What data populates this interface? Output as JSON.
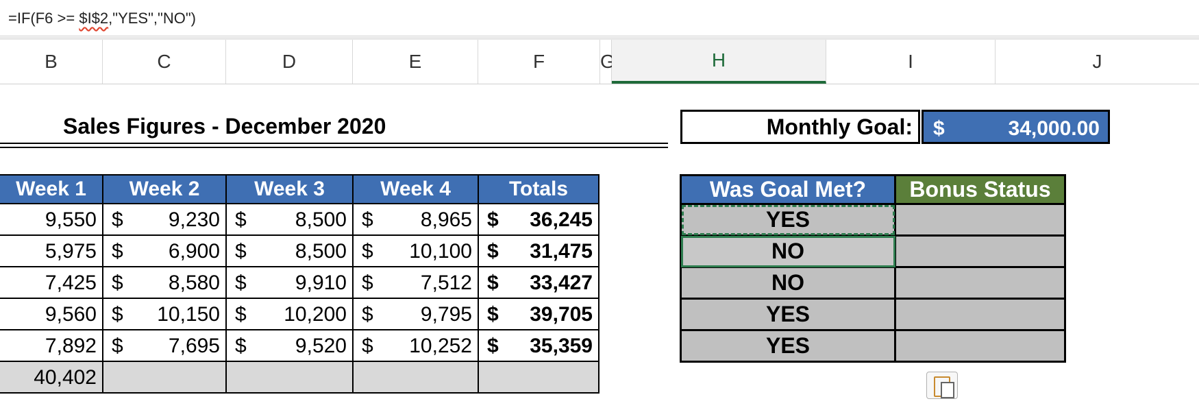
{
  "formula": {
    "prefix": "=IF(F6 >= ",
    "ref": "$I$2",
    "suffix": ",\"YES\",\"NO\")"
  },
  "columns": [
    "B",
    "C",
    "D",
    "E",
    "F",
    "G",
    "H",
    "I",
    "J"
  ],
  "active_column": "H",
  "title": "Sales Figures - December 2020",
  "goal": {
    "label": "Monthly Goal:",
    "currency": "$",
    "value": "34,000.00"
  },
  "sales_table": {
    "headers": [
      "Week 1",
      "Week 2",
      "Week 3",
      "Week 4",
      "Totals"
    ],
    "rows": [
      {
        "w1": "9,550",
        "w2": "9,230",
        "w3": "8,500",
        "w4": "8,965",
        "total": "36,245"
      },
      {
        "w1": "5,975",
        "w2": "6,900",
        "w3": "8,500",
        "w4": "10,100",
        "total": "31,475"
      },
      {
        "w1": "7,425",
        "w2": "8,580",
        "w3": "9,910",
        "w4": "7,512",
        "total": "33,427"
      },
      {
        "w1": "9,560",
        "w2": "10,150",
        "w3": "10,200",
        "w4": "9,795",
        "total": "39,705"
      },
      {
        "w1": "7,892",
        "w2": "7,695",
        "w3": "9,520",
        "w4": "10,252",
        "total": "35,359"
      }
    ],
    "currency": "$",
    "footer_w1": "40,402"
  },
  "goal_table": {
    "headers": [
      "Was Goal Met?",
      "Bonus Status"
    ],
    "header_colors": [
      "#3f6fb3",
      "#5b7f3a"
    ],
    "results": [
      "YES",
      "NO",
      "NO",
      "YES",
      "YES"
    ]
  }
}
